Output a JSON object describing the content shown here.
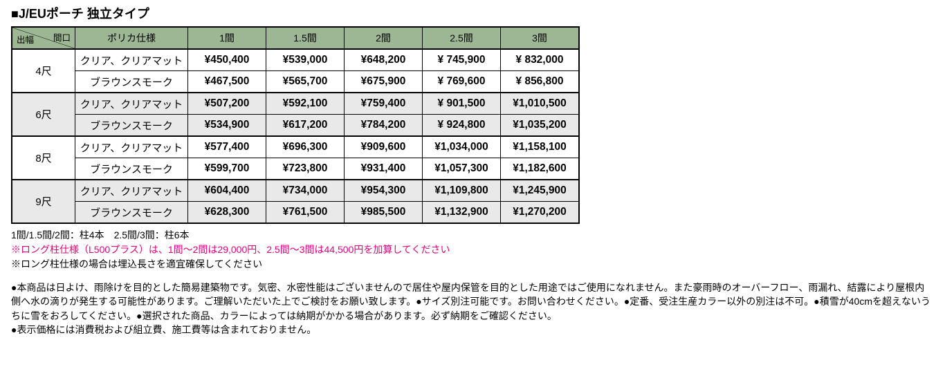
{
  "title": "■J/EUポーチ 独立タイプ",
  "corner": {
    "top_label": "間口",
    "bottom_label": "出幅"
  },
  "spec_header": "ポリカ仕様",
  "width_cols": [
    "1間",
    "1.5間",
    "2間",
    "2.5間",
    "3間"
  ],
  "depth_rows": [
    {
      "label": "4尺",
      "shade": false,
      "specs": [
        {
          "name": "クリア、クリアマット",
          "prices": [
            "¥450,400",
            "¥539,000",
            "¥648,200",
            "¥ 745,900",
            "¥ 832,000"
          ]
        },
        {
          "name": "ブラウンスモーク",
          "prices": [
            "¥467,500",
            "¥565,700",
            "¥675,900",
            "¥ 769,600",
            "¥ 856,800"
          ]
        }
      ]
    },
    {
      "label": "6尺",
      "shade": true,
      "specs": [
        {
          "name": "クリア、クリアマット",
          "prices": [
            "¥507,200",
            "¥592,100",
            "¥759,400",
            "¥ 901,500",
            "¥1,010,500"
          ]
        },
        {
          "name": "ブラウンスモーク",
          "prices": [
            "¥534,900",
            "¥617,200",
            "¥784,200",
            "¥ 924,800",
            "¥1,035,200"
          ]
        }
      ]
    },
    {
      "label": "8尺",
      "shade": false,
      "specs": [
        {
          "name": "クリア、クリアマット",
          "prices": [
            "¥577,400",
            "¥696,300",
            "¥909,600",
            "¥1,034,000",
            "¥1,158,100"
          ]
        },
        {
          "name": "ブラウンスモーク",
          "prices": [
            "¥599,700",
            "¥723,800",
            "¥931,400",
            "¥1,057,300",
            "¥1,182,600"
          ]
        }
      ]
    },
    {
      "label": "9尺",
      "shade": true,
      "specs": [
        {
          "name": "クリア、クリアマット",
          "prices": [
            "¥604,400",
            "¥734,000",
            "¥954,300",
            "¥1,109,800",
            "¥1,245,900"
          ]
        },
        {
          "name": "ブラウンスモーク",
          "prices": [
            "¥628,300",
            "¥761,500",
            "¥985,500",
            "¥1,132,900",
            "¥1,270,200"
          ]
        }
      ]
    }
  ],
  "notes": [
    {
      "text": "1間/1.5間/2間：柱4本　2.5間/3間：柱6本",
      "pink": false
    },
    {
      "text": "※ロング柱仕様（L500プラス）は、1間～2間は29,000円、2.5間～3間は44,500円を加算してください",
      "pink": true
    },
    {
      "text": "※ロング柱仕様の場合は埋込長さを適宜確保してください",
      "pink": false
    }
  ],
  "bodytext": "●本商品は日よけ、雨除けを目的とした簡易建築物です。気密、水密性能はございませんので居住や屋内保管を目的とした用途ではご使用になれません。また豪雨時のオーバーフロー、雨漏れ、結露により屋根内側へ水の滴りが発生する可能性があります。ご理解いただいた上でご検討をお願い致します。●サイズ別注可能です。お問い合わせください。●定番、受注生産カラー以外の別注は不可。●積雪が40cmを超えないうちに雪をおろしてください。●選択された商品、カラーによっては納期がかかる場合があります。必ず納期をご確認ください。\n●表示価格には消費税および組立費、施工費等は含まれておりません。",
  "colors": {
    "header_bg": "#9db693",
    "shade_bg": "#e9e9e9",
    "pink": "#e6007e"
  }
}
